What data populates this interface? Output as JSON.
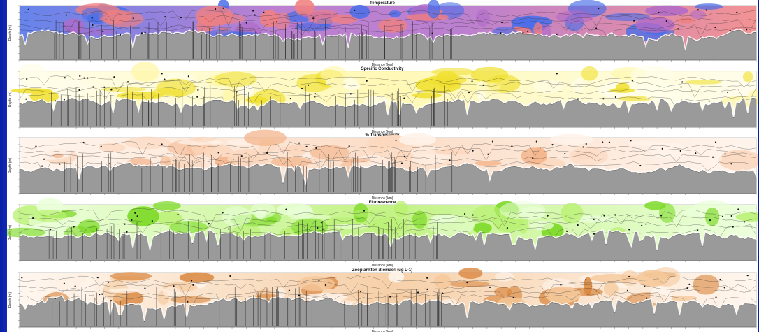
{
  "chart_data": [
    {
      "type": "heatmap",
      "title": "Temperature",
      "xlabel": "Distance (km)",
      "ylabel": "Depth (m)",
      "colormap": [
        "#4a6ee8",
        "#b06ac8",
        "#f08080"
      ],
      "grid": true
    },
    {
      "type": "heatmap",
      "title": "Specific Conductivity",
      "xlabel": "Distance (km)",
      "ylabel": "Depth (m)",
      "colormap": [
        "#fffde8",
        "#fff7a8",
        "#f0e030"
      ],
      "grid": true
    },
    {
      "type": "heatmap",
      "title": "% Transmissivity",
      "xlabel": "Distance (km)",
      "ylabel": "Depth (m)",
      "colormap": [
        "#fff3ea",
        "#fbd7bd",
        "#f3b58c"
      ],
      "grid": true
    },
    {
      "type": "heatmap",
      "title": "Fluorescence",
      "xlabel": "Distance (km)",
      "ylabel": "Depth (m)",
      "colormap": [
        "#eaffd8",
        "#b8f070",
        "#78d820"
      ],
      "grid": true
    },
    {
      "type": "heatmap",
      "title": "Zooplankton Biomass (ug L-1)",
      "xlabel": "Distance (km)",
      "ylabel": "Depth (m)",
      "colormap": [
        "#fff5ec",
        "#f5c89a",
        "#d9863e"
      ],
      "grid": true
    }
  ],
  "colors": {
    "slide_background": "#1836d8",
    "seabed": "#9a9a9a",
    "contour": "#2b2b2b"
  }
}
